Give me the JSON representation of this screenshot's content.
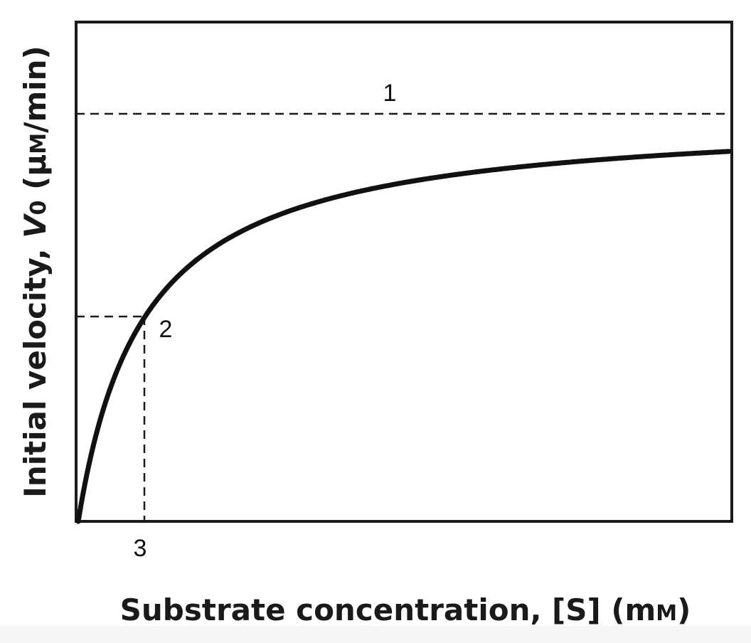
{
  "plot": {
    "labels": [
      "1",
      "2",
      "3"
    ],
    "y_axis_title": {
      "text": "Initial velocity, ",
      "symbol": "V",
      "subscript": "0",
      "unit_open": " (μ",
      "unit_m": "M",
      "unit_close": "/min)"
    },
    "x_axis_title": {
      "text": "Substrate concentration, [S] (m",
      "unit_m": "M",
      "unit_close": ")"
    }
  }
}
